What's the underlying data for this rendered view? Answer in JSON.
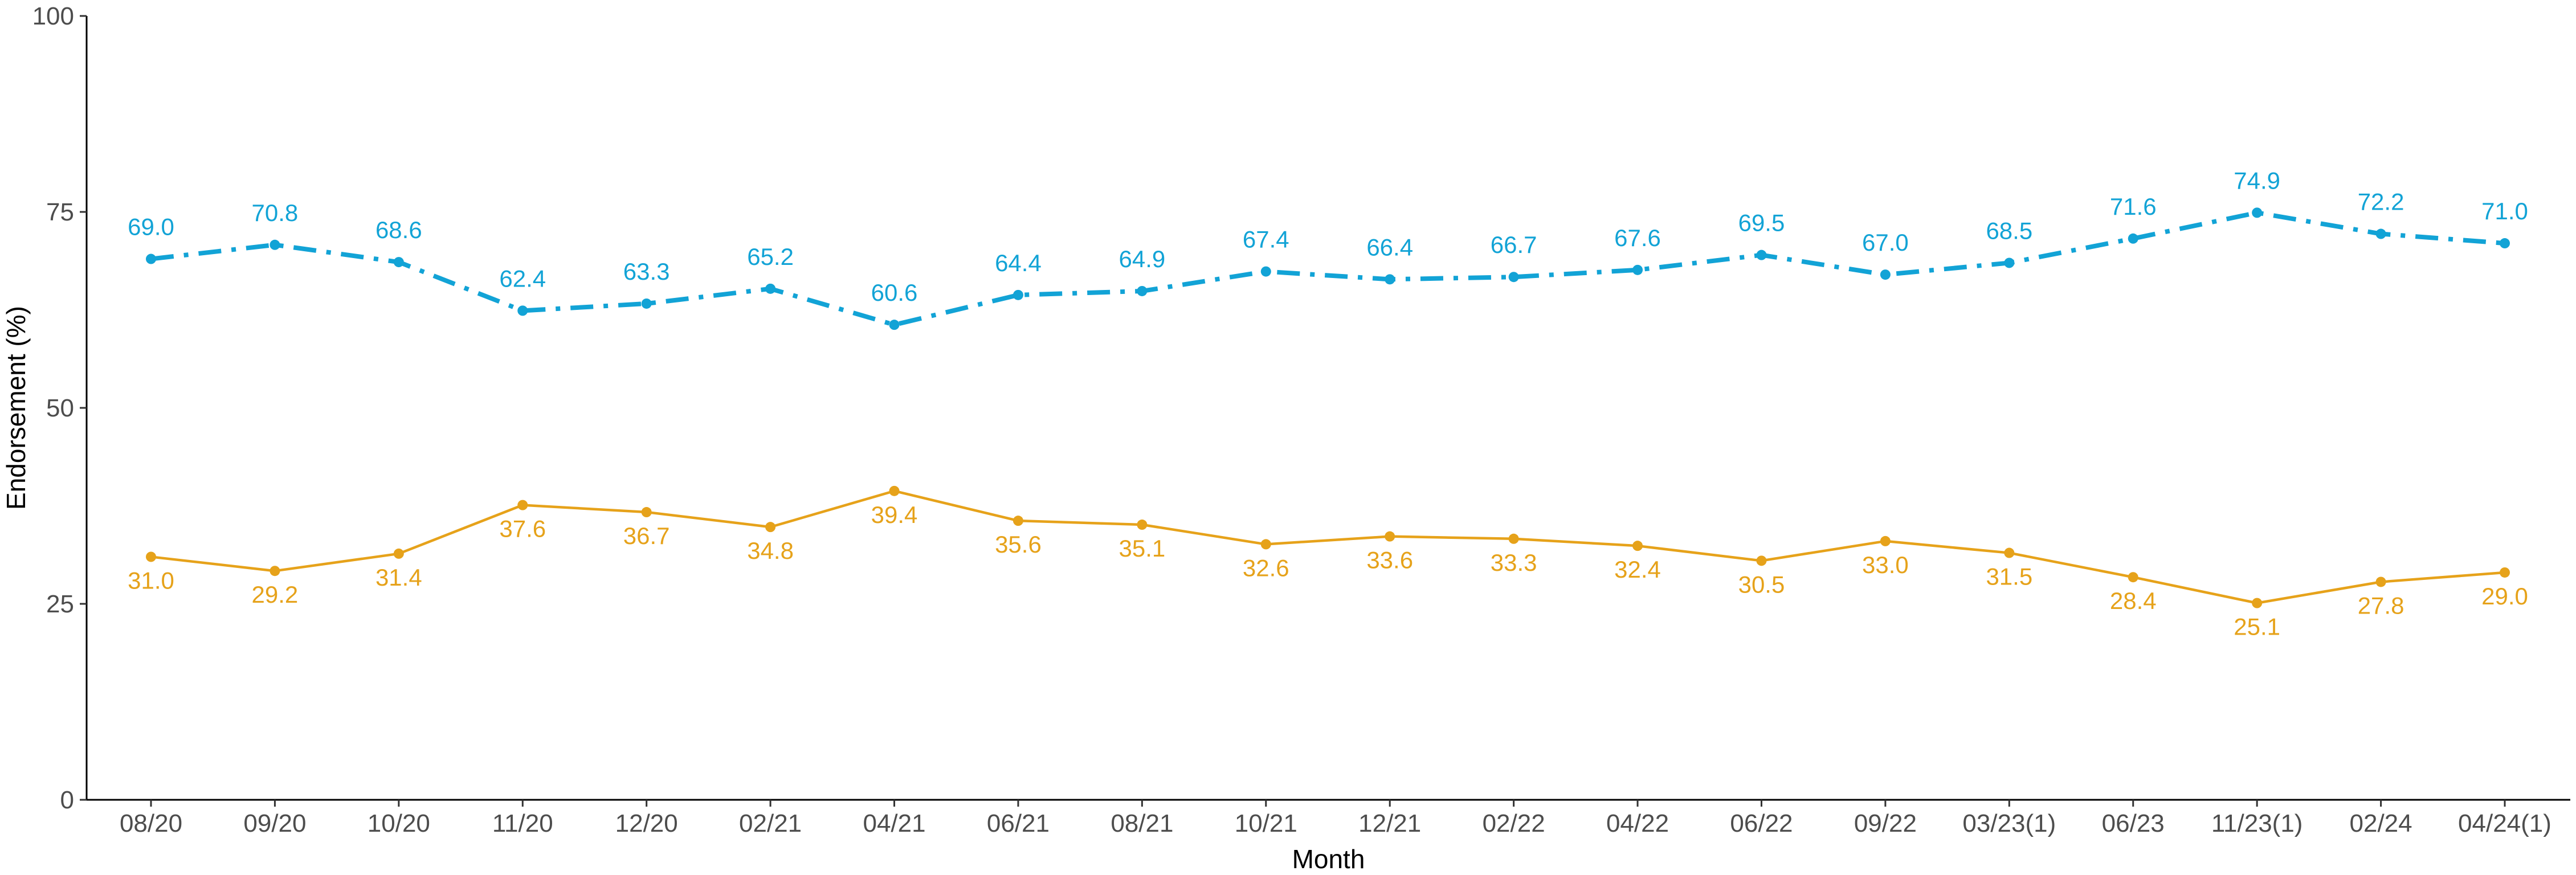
{
  "chart_data": {
    "type": "line",
    "title": "",
    "xlabel": "Month",
    "ylabel": "Endorsement (%)",
    "ylim": [
      0,
      100
    ],
    "yticks": [
      "0",
      "25",
      "50",
      "75",
      "100"
    ],
    "grid": false,
    "legend": "none",
    "categories": [
      "08/20",
      "09/20",
      "10/20",
      "11/20",
      "12/20",
      "02/21",
      "04/21",
      "06/21",
      "08/21",
      "10/21",
      "12/21",
      "02/22",
      "04/22",
      "06/22",
      "09/22",
      "03/23(1)",
      "06/23",
      "11/23(1)",
      "02/24",
      "04/24(1)"
    ],
    "series": [
      {
        "color": "#12a3d6",
        "line_style": "dashdot",
        "label_position": "above",
        "values": [
          69.0,
          70.8,
          68.6,
          62.4,
          63.3,
          65.2,
          60.6,
          64.4,
          64.9,
          67.4,
          66.4,
          66.7,
          67.6,
          69.5,
          67.0,
          68.5,
          71.6,
          74.9,
          72.2,
          71.0
        ],
        "labels": [
          "69.0",
          "70.8",
          "68.6",
          "62.4",
          "63.3",
          "65.2",
          "60.6",
          "64.4",
          "64.9",
          "67.4",
          "66.4",
          "66.7",
          "67.6",
          "69.5",
          "67.0",
          "68.5",
          "71.6",
          "74.9",
          "72.2",
          "71.0"
        ]
      },
      {
        "color": "#e6a21a",
        "line_style": "solid",
        "label_position": "below",
        "values": [
          31.0,
          29.2,
          31.4,
          37.6,
          36.7,
          34.8,
          39.4,
          35.6,
          35.1,
          32.6,
          33.6,
          33.3,
          32.4,
          30.5,
          33.0,
          31.5,
          28.4,
          25.1,
          27.8,
          29.0
        ],
        "labels": [
          "31.0",
          "29.2",
          "31.4",
          "37.6",
          "36.7",
          "34.8",
          "39.4",
          "35.6",
          "35.1",
          "32.6",
          "33.6",
          "33.3",
          "32.4",
          "30.5",
          "33.0",
          "31.5",
          "28.4",
          "25.1",
          "27.8",
          "29.0"
        ]
      }
    ]
  }
}
